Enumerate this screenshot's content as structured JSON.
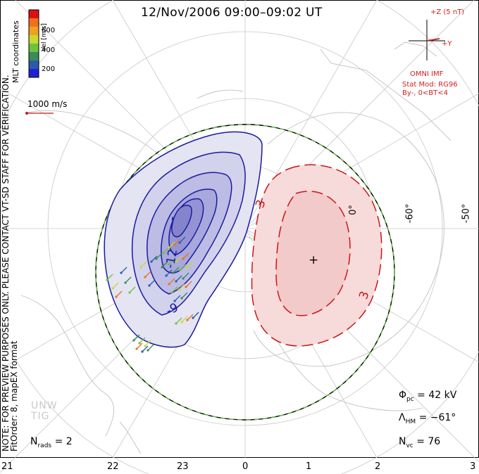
{
  "title": "12/Nov/2006 09:00–09:02 UT",
  "colorbar": {
    "label": "Vel [m/s]",
    "ticks": [
      "600",
      "400",
      "200"
    ],
    "colors": [
      "#e01010",
      "#f07020",
      "#f0a020",
      "#c8d830",
      "#70c040",
      "#3a8a5a",
      "#2c5aa8",
      "#2020d8"
    ]
  },
  "coordinates_label": "MLT coordinates",
  "reference_vector": "1000 m/s",
  "imf": {
    "z_label": "+Z (5 nT)",
    "y_label": "+Y",
    "source": "OMNI IMF",
    "stat_mod": "Stat Mod: RG96",
    "condition": "By-, 0<BT<4"
  },
  "note": {
    "line1": "NOTE: FOR PREVIEW PURPOSES ONLY. PLEASE CONTACT VT-SD STAFF FOR VERIFICATION.",
    "line2": "FitOrder: 8, mapEX format"
  },
  "watermark": {
    "line1": "UNW",
    "line2": "TIG"
  },
  "stats": {
    "nrads_symbol": "N",
    "nrads_sub": "rads",
    "nrads_value": "= 2",
    "phi_symbol": "Φ",
    "phi_sub": "pc",
    "phi_value": "= 42 kV",
    "lambda_symbol": "Λ",
    "lambda_sub": "HM",
    "lambda_value": "= −61°",
    "nvc_symbol": "N",
    "nvc_sub": "vc",
    "nvc_value": "= 76"
  },
  "mlt_ticks": [
    "21",
    "22",
    "23",
    "0",
    "1",
    "2",
    "3"
  ],
  "lat_labels": [
    "-50°",
    "-60°",
    "0°"
  ],
  "contour_labels": {
    "neg_large": "-9",
    "neg_mid": "-12",
    "neg_center": "-",
    "pos": "3",
    "pos_right": "3",
    "pos_center": "+"
  },
  "colors": {
    "negative": "#1a1aa0",
    "positive": "#c81818",
    "hmb": "#66c040"
  }
}
